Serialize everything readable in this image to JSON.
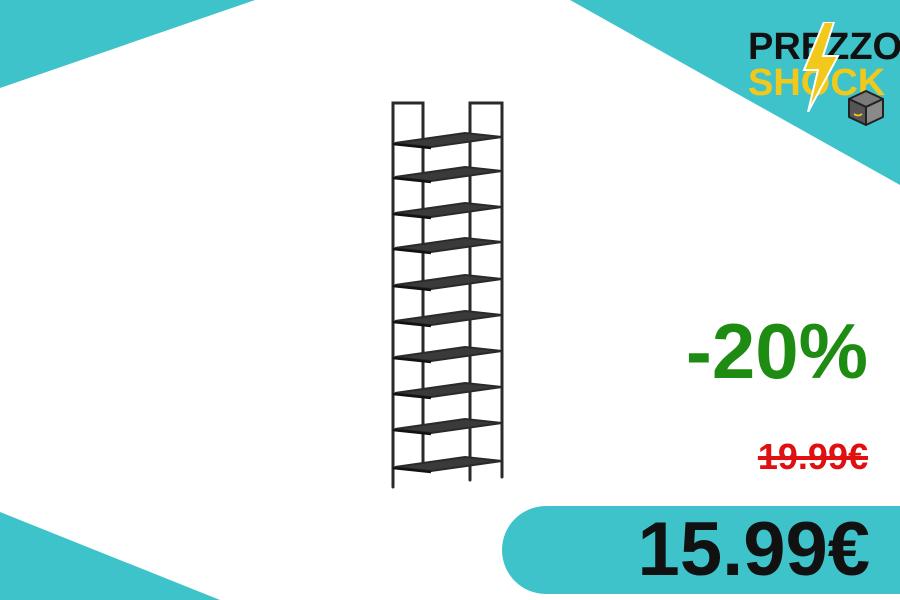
{
  "logo": {
    "line1": "PREZZO",
    "line2": "SHOCK",
    "icons": [
      "lightning-bolt-icon",
      "package-box-icon"
    ]
  },
  "product": {
    "image": "10-tier shoe rack"
  },
  "offer": {
    "discount": "-20%",
    "old_price": "19.99€",
    "new_price": "15.99€"
  },
  "colors": {
    "teal": "#3fc3cb",
    "green": "#1e8c12",
    "red": "#e01010",
    "yellow": "#f2c81a",
    "dark": "#111111"
  }
}
